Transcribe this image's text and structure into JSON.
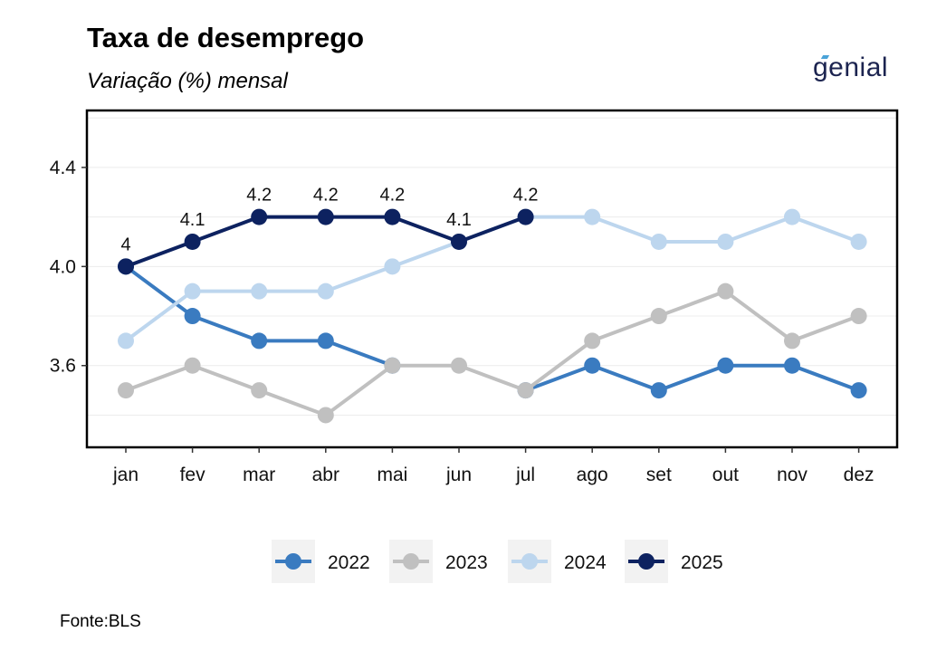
{
  "header": {
    "title": "Taxa de desemprego",
    "subtitle": "Variação (%) mensal",
    "logo_text": "genial"
  },
  "footer": {
    "source": "Fonte:BLS"
  },
  "chart_data": {
    "type": "line",
    "title": "Taxa de desemprego",
    "subtitle": "Variação (%) mensal",
    "xlabel": "",
    "ylabel": "",
    "categories": [
      "jan",
      "fev",
      "mar",
      "abr",
      "mai",
      "jun",
      "jul",
      "ago",
      "set",
      "out",
      "nov",
      "dez"
    ],
    "ylim": [
      3.27,
      4.63
    ],
    "yticks": [
      3.6,
      4.0,
      4.4
    ],
    "ytick_labels": [
      "3.6",
      "4.0",
      "4.4"
    ],
    "grid": true,
    "legend_position": "bottom",
    "series": [
      {
        "name": "2022",
        "color": "#3a7bc0",
        "values": [
          4.0,
          3.8,
          3.7,
          3.7,
          3.6,
          null,
          3.5,
          3.6,
          3.5,
          3.6,
          3.6,
          3.5
        ]
      },
      {
        "name": "2023",
        "color": "#c0c0c0",
        "values": [
          3.5,
          3.6,
          3.5,
          3.4,
          3.6,
          3.6,
          3.5,
          3.7,
          3.8,
          3.9,
          3.7,
          3.8
        ]
      },
      {
        "name": "2024",
        "color": "#bdd6ee",
        "values": [
          3.7,
          3.9,
          3.9,
          3.9,
          4.0,
          4.1,
          4.2,
          4.2,
          4.1,
          4.1,
          4.2,
          4.1
        ]
      },
      {
        "name": "2025",
        "color": "#0d2260",
        "values": [
          4.0,
          4.1,
          4.2,
          4.2,
          4.2,
          4.1,
          4.2,
          null,
          null,
          null,
          null,
          null
        ],
        "data_labels": [
          "4",
          "4.1",
          "4.2",
          "4.2",
          "4.2",
          "4.1",
          "4.2"
        ]
      }
    ]
  }
}
